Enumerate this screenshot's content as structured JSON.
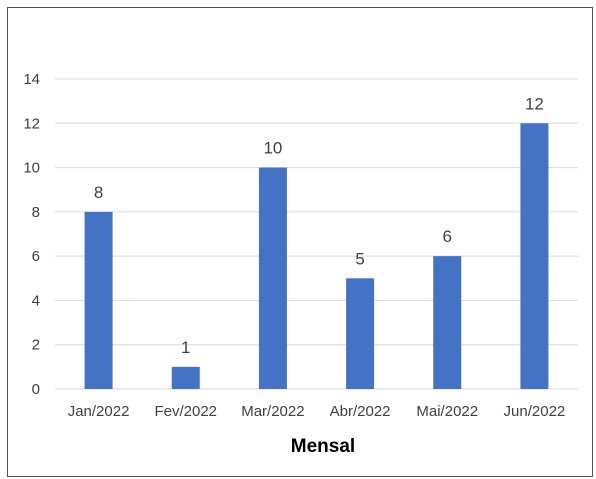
{
  "chart_data": {
    "type": "bar",
    "title": "",
    "xlabel": "Mensal",
    "ylabel": "",
    "categories": [
      "Jan/2022",
      "Fev/2022",
      "Mar/2022",
      "Abr/2022",
      "Mai/2022",
      "Jun/2022"
    ],
    "values": [
      8,
      1,
      10,
      5,
      6,
      12
    ],
    "ylim": [
      0,
      14
    ],
    "yticks": [
      0,
      2,
      4,
      6,
      8,
      10,
      12,
      14
    ],
    "grid": true,
    "legend": "none",
    "colors": {
      "bar": "#4472C4",
      "grid": "#D9D9D9",
      "text": "#404040"
    }
  }
}
